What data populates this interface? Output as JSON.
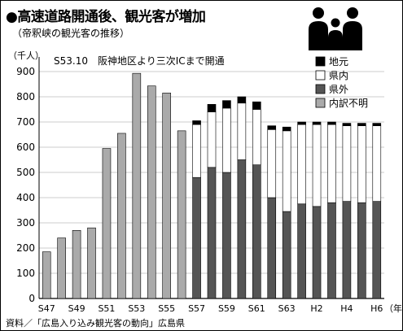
{
  "title": "●高速道路開通後、観光客が増加",
  "subtitle": "（帝釈峡の観光客の推移）",
  "source": "資料／「広島入り込み観光客の動向」広島県",
  "colors": {
    "chimoto": "#000000",
    "kennai": "#ffffff",
    "kengai": "#555555",
    "uchiwake_fumei": "#aaaaaa"
  },
  "chart_data": {
    "type": "bar",
    "stacked": true,
    "title": "●高速道路開通後、観光客が増加",
    "subtitle": "（帝釈峡の観光客の推移）",
    "ylabel": "（千人）",
    "ylim": [
      0,
      900
    ],
    "yticks": [
      0,
      100,
      200,
      300,
      400,
      500,
      600,
      700,
      800,
      900
    ],
    "grid": true,
    "xlabel_unit": "（年）",
    "x_tick_labels": [
      {
        "index": 0,
        "label": "S47"
      },
      {
        "index": 2,
        "label": "S49"
      },
      {
        "index": 4,
        "label": "S51"
      },
      {
        "index": 6,
        "label": "S53"
      },
      {
        "index": 8,
        "label": "S55"
      },
      {
        "index": 10,
        "label": "S57"
      },
      {
        "index": 12,
        "label": "S59"
      },
      {
        "index": 14,
        "label": "S61"
      },
      {
        "index": 16,
        "label": "S63"
      },
      {
        "index": 18,
        "label": "H2"
      },
      {
        "index": 20,
        "label": "H4"
      },
      {
        "index": 22,
        "label": "H6"
      }
    ],
    "categories": [
      "S47",
      "S48",
      "S49",
      "S50",
      "S51",
      "S52",
      "S53",
      "S54",
      "S55",
      "S56",
      "S57",
      "S58",
      "S59",
      "S60",
      "S61",
      "S62",
      "S63",
      "H1",
      "H2",
      "H3",
      "H4",
      "H5",
      "H6"
    ],
    "annotation": "S53.10　阪神地区より三次ICまで開通",
    "legend_position": "top-right",
    "series": [
      {
        "name": "県外",
        "key": "kengai",
        "values": [
          0,
          0,
          0,
          0,
          0,
          0,
          0,
          0,
          0,
          0,
          480,
          520,
          500,
          550,
          530,
          400,
          345,
          375,
          365,
          380,
          385,
          380,
          385
        ]
      },
      {
        "name": "県内",
        "key": "kennai",
        "values": [
          0,
          0,
          0,
          0,
          0,
          0,
          0,
          0,
          0,
          0,
          210,
          220,
          255,
          225,
          220,
          270,
          320,
          315,
          325,
          310,
          300,
          305,
          300
        ]
      },
      {
        "name": "地元",
        "key": "chimoto",
        "values": [
          0,
          0,
          0,
          0,
          0,
          0,
          0,
          0,
          0,
          0,
          15,
          30,
          30,
          25,
          30,
          15,
          15,
          10,
          10,
          10,
          10,
          10,
          10
        ]
      },
      {
        "name": "内訳不明",
        "key": "uchiwake_fumei",
        "values": [
          185,
          240,
          270,
          280,
          595,
          655,
          893,
          843,
          815,
          665,
          0,
          0,
          0,
          0,
          0,
          0,
          0,
          0,
          0,
          0,
          0,
          0,
          0
        ]
      }
    ],
    "legend": [
      {
        "name": "地元",
        "key": "chimoto"
      },
      {
        "name": "県内",
        "key": "kennai"
      },
      {
        "name": "県外",
        "key": "kengai"
      },
      {
        "name": "内訳不明",
        "key": "uchiwake_fumei"
      }
    ]
  }
}
